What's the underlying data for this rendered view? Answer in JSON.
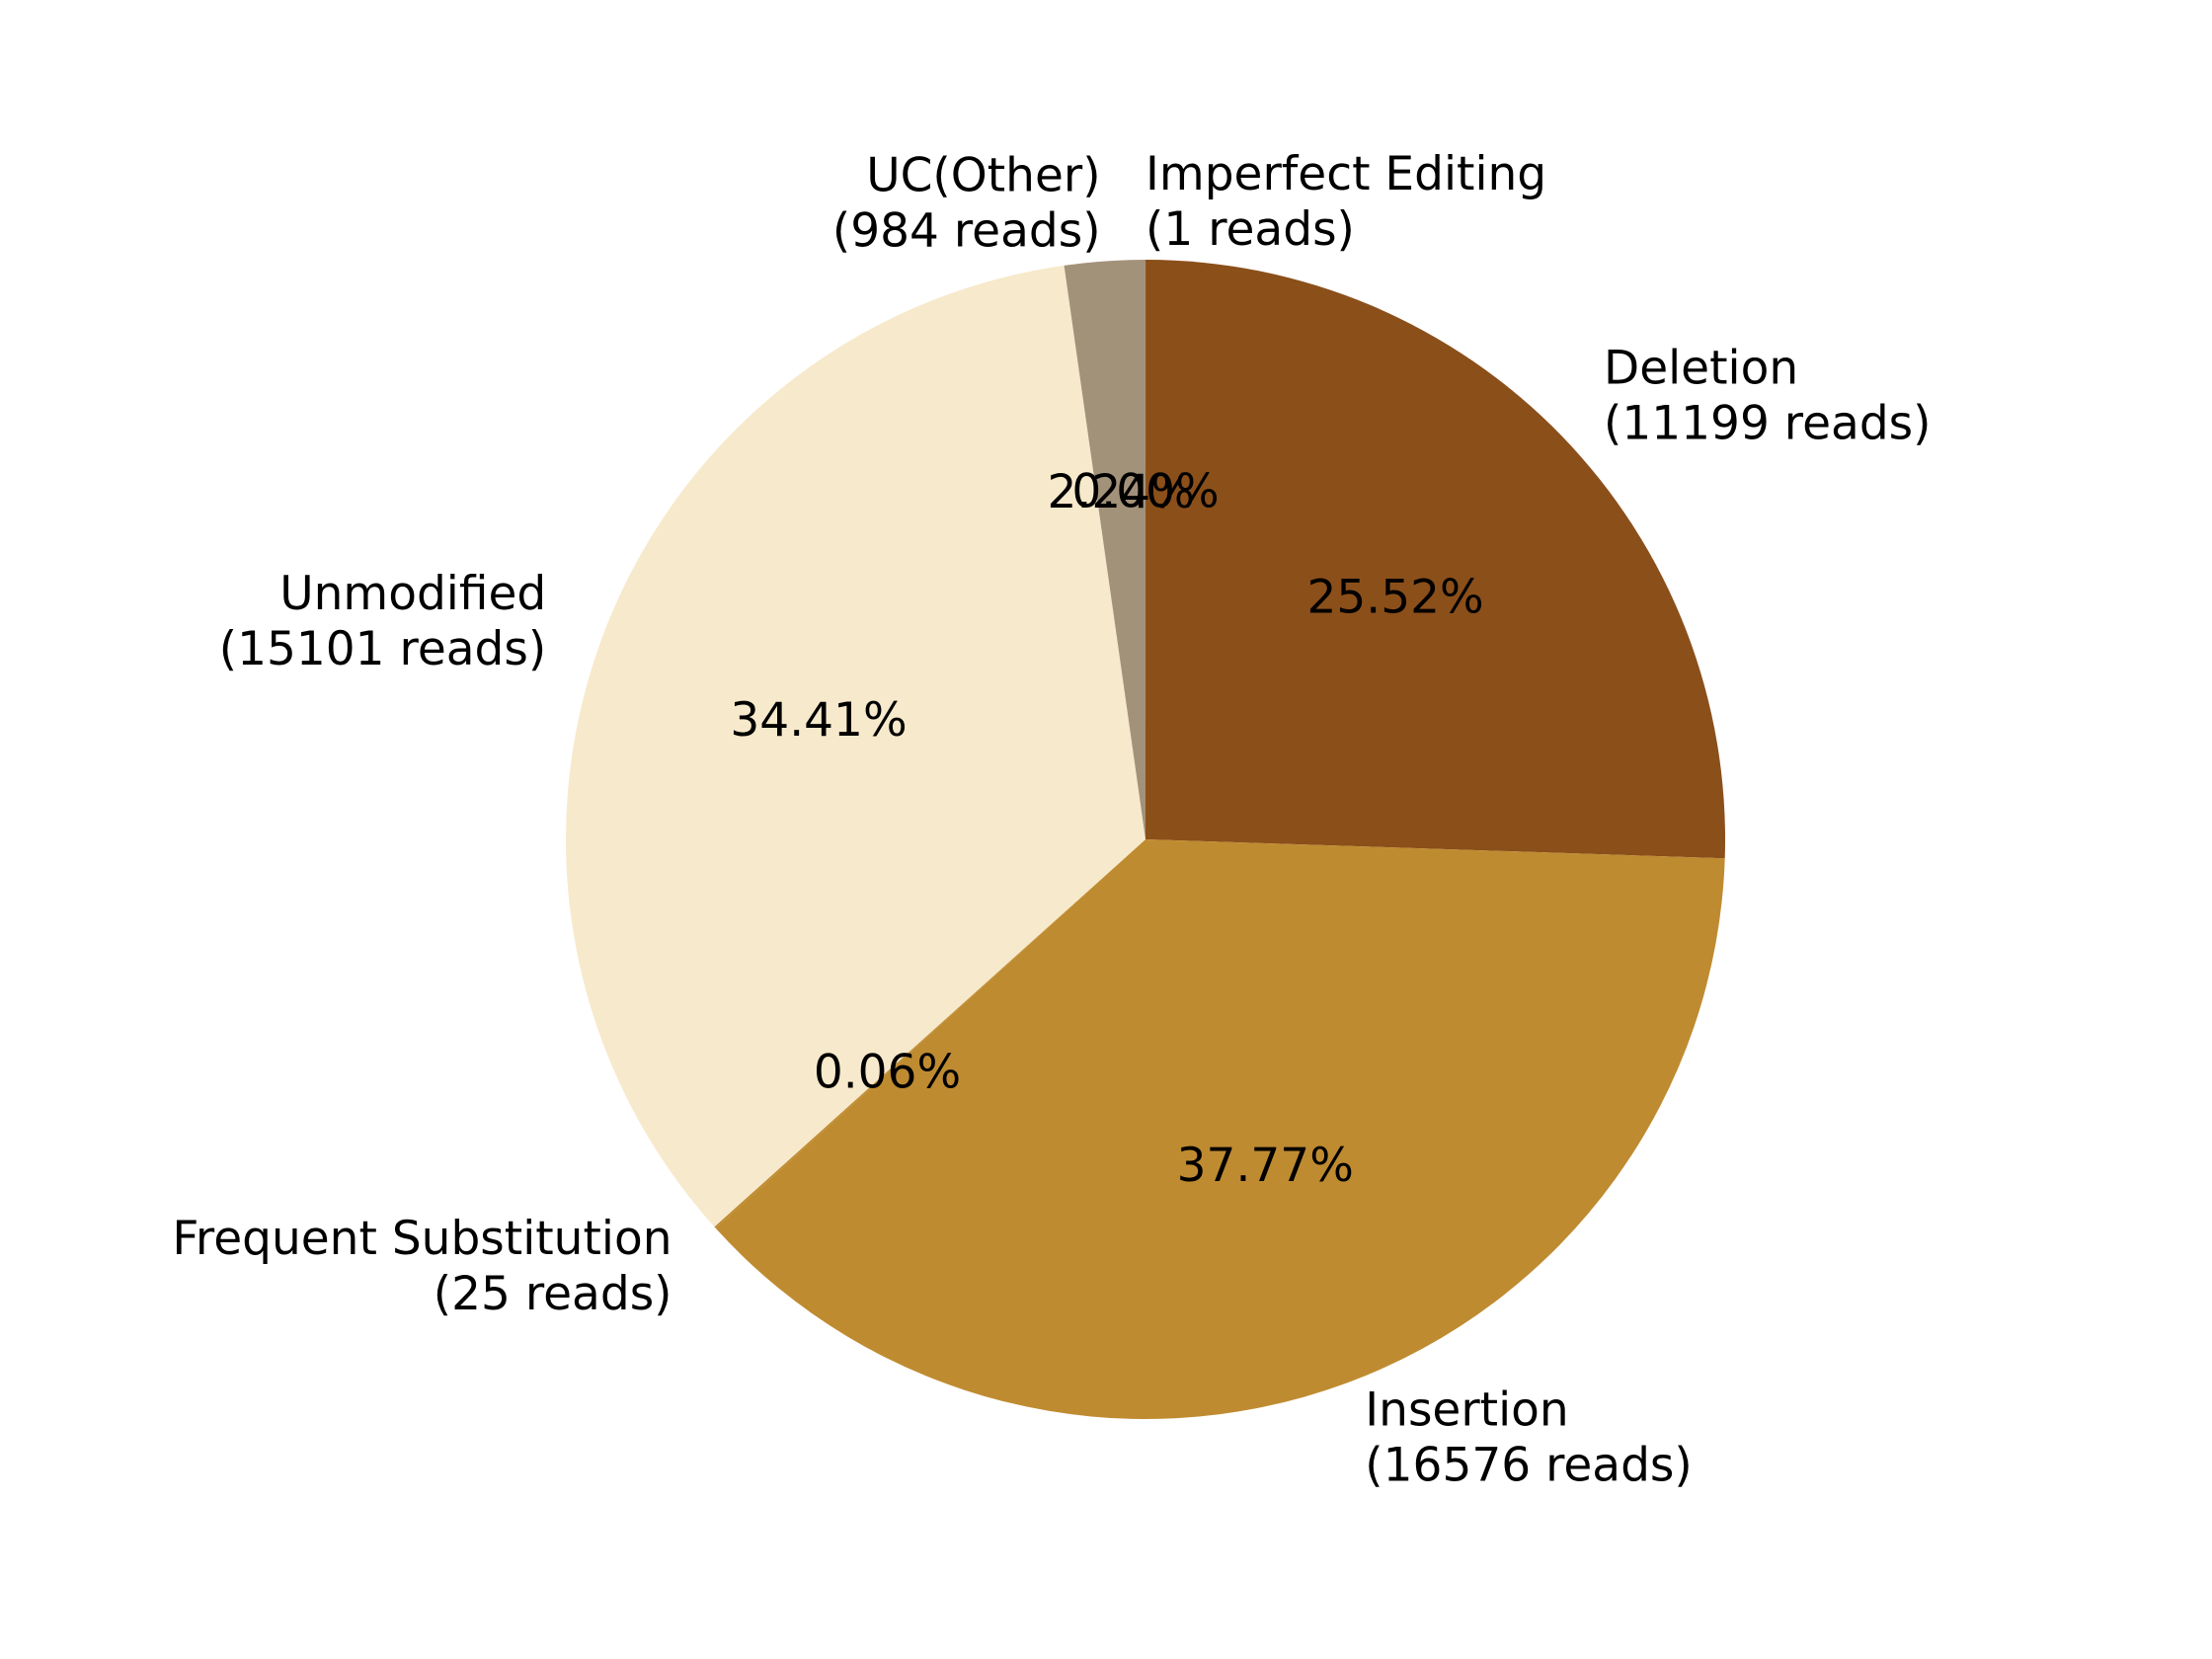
{
  "chart_data": {
    "type": "pie",
    "title": "",
    "start_angle_deg": 90,
    "direction": "clockwise",
    "slices": [
      {
        "name": "Imperfect Editing",
        "reads": 1,
        "percent_label": "0.00%",
        "count_label": "(1 reads)",
        "color": "#8b4f1a"
      },
      {
        "name": "Deletion",
        "reads": 11199,
        "percent_label": "25.52%",
        "count_label": "(11199 reads)",
        "color": "#8b4f1a"
      },
      {
        "name": "Insertion",
        "reads": 16576,
        "percent_label": "37.77%",
        "count_label": "(16576 reads)",
        "color": "#bf8b30"
      },
      {
        "name": "Frequent Substitution",
        "reads": 25,
        "percent_label": "0.06%",
        "count_label": "(25 reads)",
        "color": "#bf8b30"
      },
      {
        "name": "Unmodified",
        "reads": 15101,
        "percent_label": "34.41%",
        "count_label": "(15101 reads)",
        "color": "#f7e9cb"
      },
      {
        "name": "UC(Other)",
        "reads": 984,
        "percent_label": "2.24%",
        "count_label": "(984 reads)",
        "color": "#a3927a"
      }
    ]
  }
}
